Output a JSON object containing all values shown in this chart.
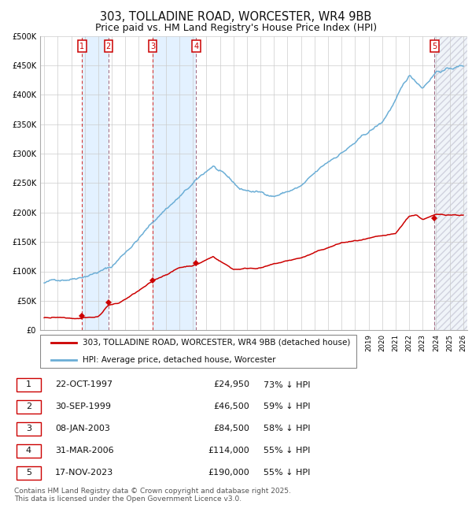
{
  "title_line1": "303, TOLLADINE ROAD, WORCESTER, WR4 9BB",
  "title_line2": "Price paid vs. HM Land Registry's House Price Index (HPI)",
  "ylim": [
    0,
    500000
  ],
  "yticks": [
    0,
    50000,
    100000,
    150000,
    200000,
    250000,
    300000,
    350000,
    400000,
    450000,
    500000
  ],
  "ytick_labels": [
    "£0",
    "£50K",
    "£100K",
    "£150K",
    "£200K",
    "£250K",
    "£300K",
    "£350K",
    "£400K",
    "£450K",
    "£500K"
  ],
  "xlim_start": 1994.7,
  "xlim_end": 2026.3,
  "background_color": "#ffffff",
  "grid_color": "#cccccc",
  "hpi_line_color": "#6baed6",
  "price_line_color": "#cc0000",
  "vline_solid_color": "#aaaadd",
  "shade_color": "#ddeeff",
  "sale_dates_x": [
    1997.81,
    1999.75,
    2003.03,
    2006.25,
    2023.88
  ],
  "sale_prices_y": [
    24950,
    46500,
    84500,
    114000,
    190000
  ],
  "sale_labels": [
    "1",
    "2",
    "3",
    "4",
    "5"
  ],
  "legend_label_price": "303, TOLLADINE ROAD, WORCESTER, WR4 9BB (detached house)",
  "legend_label_hpi": "HPI: Average price, detached house, Worcester",
  "table_data": [
    [
      "1",
      "22-OCT-1997",
      "£24,950",
      "73% ↓ HPI"
    ],
    [
      "2",
      "30-SEP-1999",
      "£46,500",
      "59% ↓ HPI"
    ],
    [
      "3",
      "08-JAN-2003",
      "£84,500",
      "58% ↓ HPI"
    ],
    [
      "4",
      "31-MAR-2006",
      "£114,000",
      "55% ↓ HPI"
    ],
    [
      "5",
      "17-NOV-2023",
      "£190,000",
      "55% ↓ HPI"
    ]
  ],
  "footer_text": "Contains HM Land Registry data © Crown copyright and database right 2025.\nThis data is licensed under the Open Government Licence v3.0.",
  "title_fontsize": 10.5,
  "subtitle_fontsize": 9,
  "tick_fontsize": 7,
  "legend_fontsize": 7.5,
  "table_fontsize": 8,
  "footer_fontsize": 6.5
}
